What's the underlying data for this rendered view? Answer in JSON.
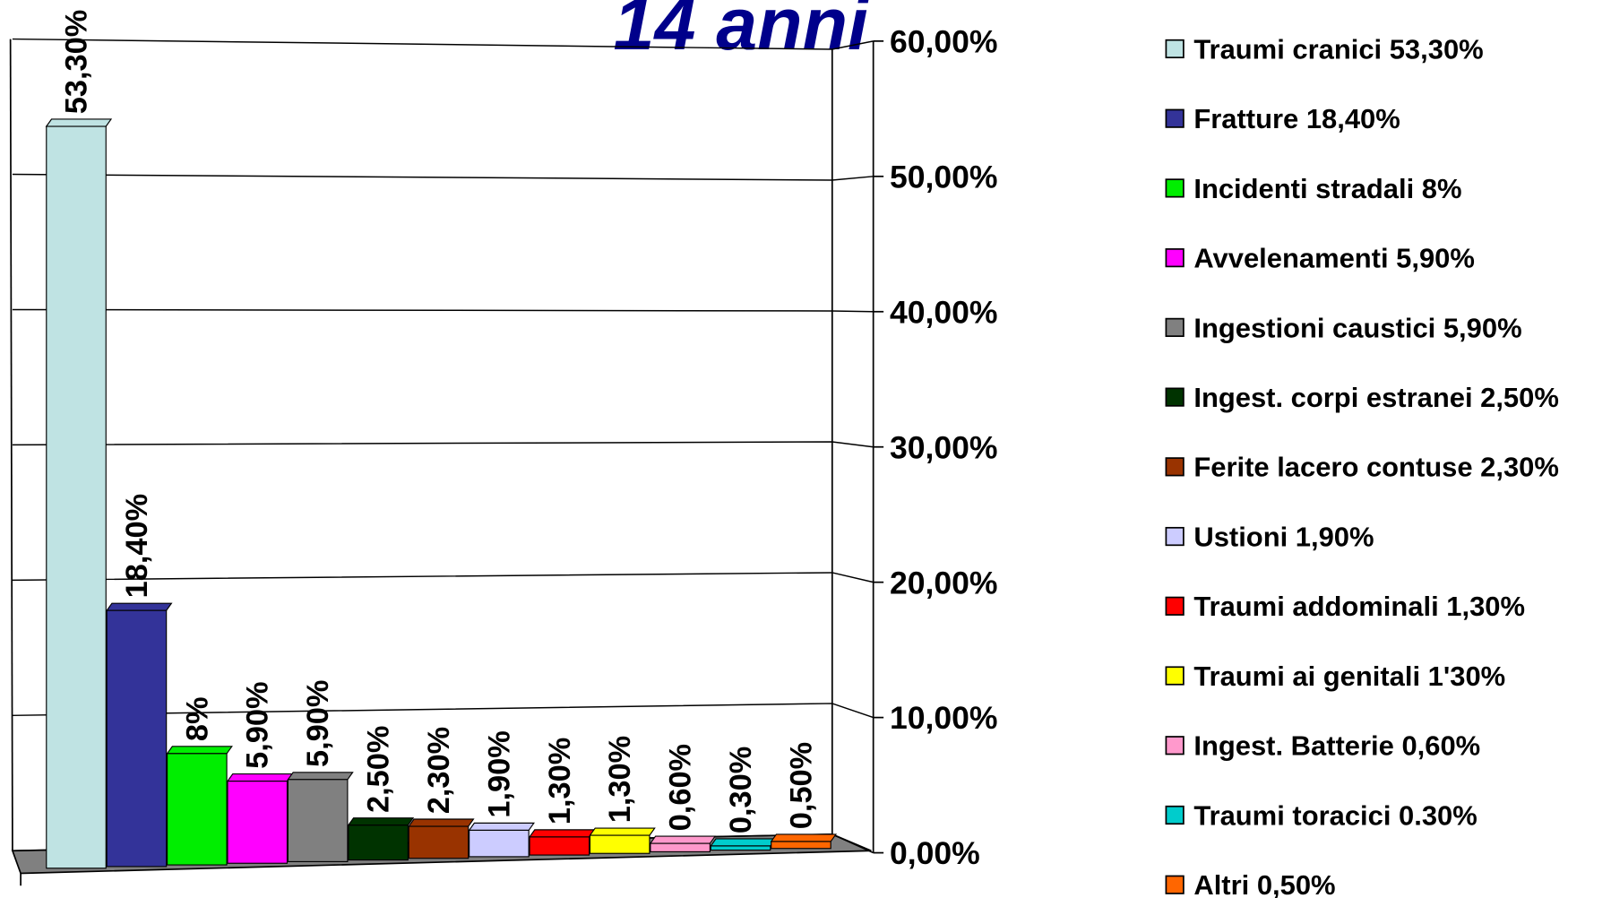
{
  "chart_data": {
    "type": "bar",
    "title": "14 anni",
    "ylim": [
      0,
      60
    ],
    "yticks": [
      {
        "value": 0,
        "label": "0,00%"
      },
      {
        "value": 10,
        "label": "10,00%"
      },
      {
        "value": 20,
        "label": "20,00%"
      },
      {
        "value": 30,
        "label": "30,00%"
      },
      {
        "value": 40,
        "label": "40,00%"
      },
      {
        "value": 50,
        "label": "50,00%"
      },
      {
        "value": 60,
        "label": "60,00%"
      }
    ],
    "grid": true,
    "legend": "right",
    "series": [
      {
        "name": "Traumi cranici 53,30%",
        "color": "#bfe3e3",
        "values": [
          53.3
        ],
        "value_labels": [
          "53,30%"
        ]
      },
      {
        "name": "Fratture 18,40%",
        "color": "#333399",
        "values": [
          18.4
        ],
        "value_labels": [
          "18,40%"
        ]
      },
      {
        "name": "Incidenti stradali 8%",
        "color": "#00ee00",
        "values": [
          8
        ],
        "value_labels": [
          "8%"
        ]
      },
      {
        "name": "Avvelenamenti 5,90%",
        "color": "#ff00ff",
        "values": [
          5.9
        ],
        "value_labels": [
          "5,90%"
        ]
      },
      {
        "name": "Ingestioni caustici 5,90%",
        "color": "#808080",
        "values": [
          5.9
        ],
        "value_labels": [
          "5,90%"
        ]
      },
      {
        "name": "Ingest. corpi estranei 2,50%",
        "color": "#003300",
        "values": [
          2.5
        ],
        "value_labels": [
          "2,50%"
        ]
      },
      {
        "name": "Ferite lacero contuse 2,30%",
        "color": "#993300",
        "values": [
          2.3
        ],
        "value_labels": [
          "2,30%"
        ]
      },
      {
        "name": "Ustioni 1,90%",
        "color": "#ccccff",
        "values": [
          1.9
        ],
        "value_labels": [
          "1,90%"
        ]
      },
      {
        "name": "Traumi addominali 1,30%",
        "color": "#ff0000",
        "values": [
          1.3
        ],
        "value_labels": [
          "1,30%"
        ]
      },
      {
        "name": "Traumi ai genitali 1'30%",
        "color": "#ffff00",
        "values": [
          1.3
        ],
        "value_labels": [
          "1,30%"
        ]
      },
      {
        "name": "Ingest. Batterie 0,60%",
        "color": "#ff99cc",
        "values": [
          0.6
        ],
        "value_labels": [
          "0,60%"
        ]
      },
      {
        "name": "Traumi toracici 0.30%",
        "color": "#00cccc",
        "values": [
          0.3
        ],
        "value_labels": [
          "0,30%"
        ]
      },
      {
        "name": "Altri 0,50%",
        "color": "#ff6600",
        "values": [
          0.5
        ],
        "value_labels": [
          "0,50%"
        ]
      }
    ]
  }
}
